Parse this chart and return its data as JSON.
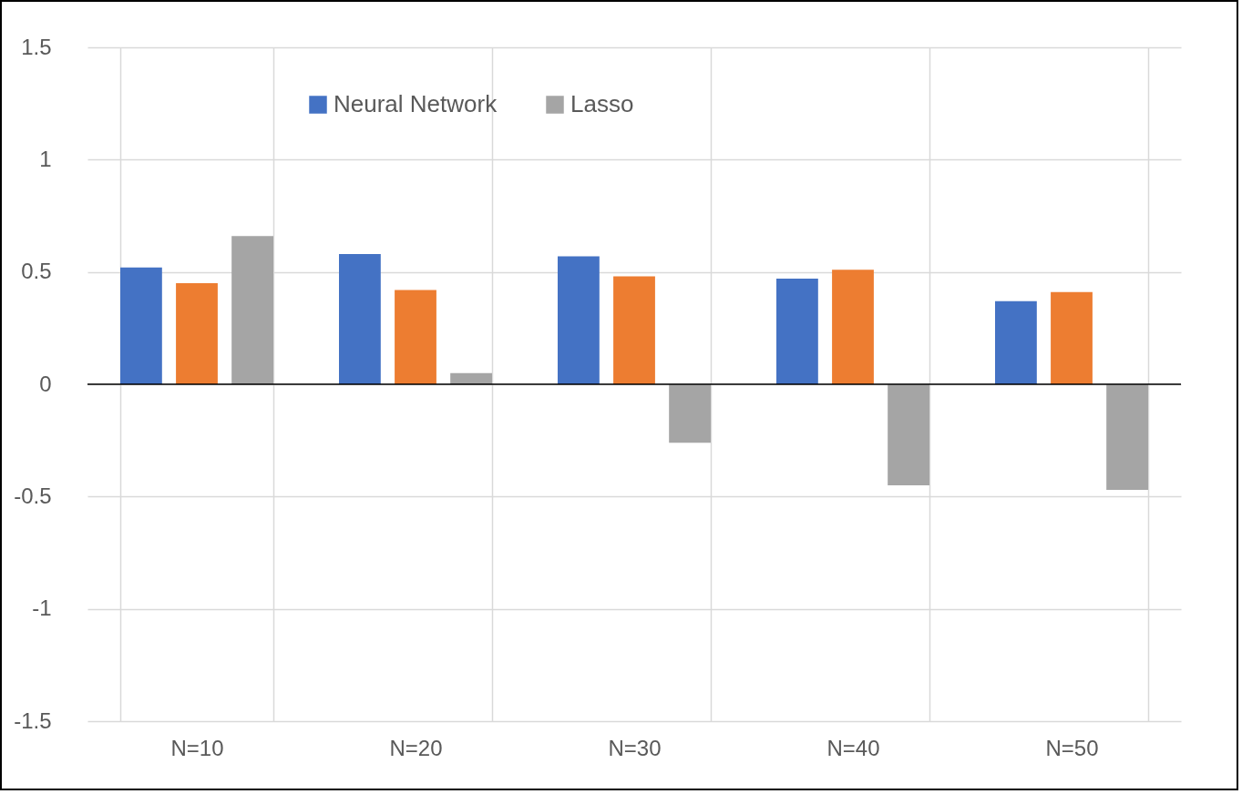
{
  "chart_data": {
    "type": "bar",
    "categories": [
      "N=10",
      "N=20",
      "N=30",
      "N=40",
      "N=50"
    ],
    "series": [
      {
        "name": "Neural Network",
        "color": "#4472c4",
        "values": [
          0.52,
          0.58,
          0.57,
          0.47,
          0.37
        ]
      },
      {
        "color": "#ed7d31",
        "values": [
          0.45,
          0.42,
          0.48,
          0.51,
          0.41
        ]
      },
      {
        "name": "Lasso",
        "color": "#a5a5a5",
        "values": [
          0.66,
          0.05,
          -0.26,
          -0.45,
          -0.47
        ]
      }
    ],
    "ylim": [
      -1.5,
      1.5
    ],
    "yticks": [
      -1.5,
      -1,
      -0.5,
      0,
      0.5,
      1,
      1.5
    ],
    "grid": true,
    "legend": "top"
  }
}
